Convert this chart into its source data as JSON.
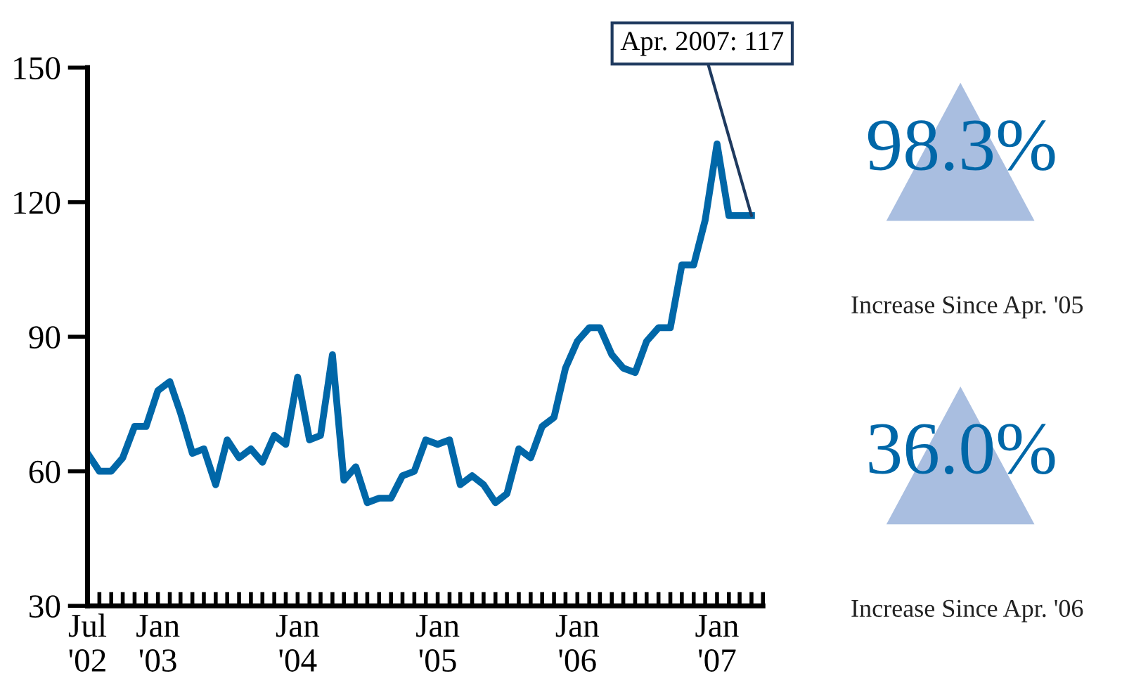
{
  "chart_data": {
    "type": "line",
    "x": [
      "2002-07",
      "2002-08",
      "2002-09",
      "2002-10",
      "2002-11",
      "2002-12",
      "2003-01",
      "2003-02",
      "2003-03",
      "2003-04",
      "2003-05",
      "2003-06",
      "2003-07",
      "2003-08",
      "2003-09",
      "2003-10",
      "2003-11",
      "2003-12",
      "2004-01",
      "2004-02",
      "2004-03",
      "2004-04",
      "2004-05",
      "2004-06",
      "2004-07",
      "2004-08",
      "2004-09",
      "2004-10",
      "2004-11",
      "2004-12",
      "2005-01",
      "2005-02",
      "2005-03",
      "2005-04",
      "2005-05",
      "2005-06",
      "2005-07",
      "2005-08",
      "2005-09",
      "2005-10",
      "2005-11",
      "2005-12",
      "2006-01",
      "2006-02",
      "2006-03",
      "2006-04",
      "2006-05",
      "2006-06",
      "2006-07",
      "2006-08",
      "2006-09",
      "2006-10",
      "2006-11",
      "2006-12",
      "2007-01",
      "2007-02",
      "2007-03",
      "2007-04"
    ],
    "series": [
      {
        "color": "#0067a8",
        "values": [
          64,
          60,
          60,
          63,
          70,
          70,
          78,
          80,
          73,
          64,
          65,
          57,
          67,
          63,
          65,
          62,
          68,
          66,
          81,
          67,
          68,
          86,
          58,
          61,
          53,
          54,
          54,
          59,
          60,
          67,
          66,
          67,
          57,
          59,
          57,
          53,
          55,
          65,
          63,
          70,
          72,
          83,
          89,
          92,
          92,
          86,
          83,
          82,
          89,
          92,
          92,
          106,
          106,
          116,
          133,
          117,
          117,
          117
        ]
      }
    ],
    "xlim": [
      "2002-07",
      "2007-05"
    ],
    "xticks": [
      {
        "value": "2002-07",
        "label": "Jul\n'02"
      },
      {
        "value": "2003-01",
        "label": "Jan\n'03"
      },
      {
        "value": "2004-01",
        "label": "Jan\n'04"
      },
      {
        "value": "2005-01",
        "label": "Jan\n'05"
      },
      {
        "value": "2006-01",
        "label": "Jan\n'06"
      },
      {
        "value": "2007-01",
        "label": "Jan\n'07"
      }
    ],
    "ylim": [
      30,
      150
    ],
    "yticks": [
      30,
      60,
      90,
      120,
      150
    ],
    "grid": false,
    "legend": false,
    "marker": "none",
    "line_style": "solid",
    "annotations": [
      {
        "text": "Apr. 2007: 117",
        "x": "2007-04",
        "y": 117
      },
      "98.3%",
      "Increase Since Apr. '05",
      "36.0%",
      "Increase Since Apr. '06"
    ]
  }
}
